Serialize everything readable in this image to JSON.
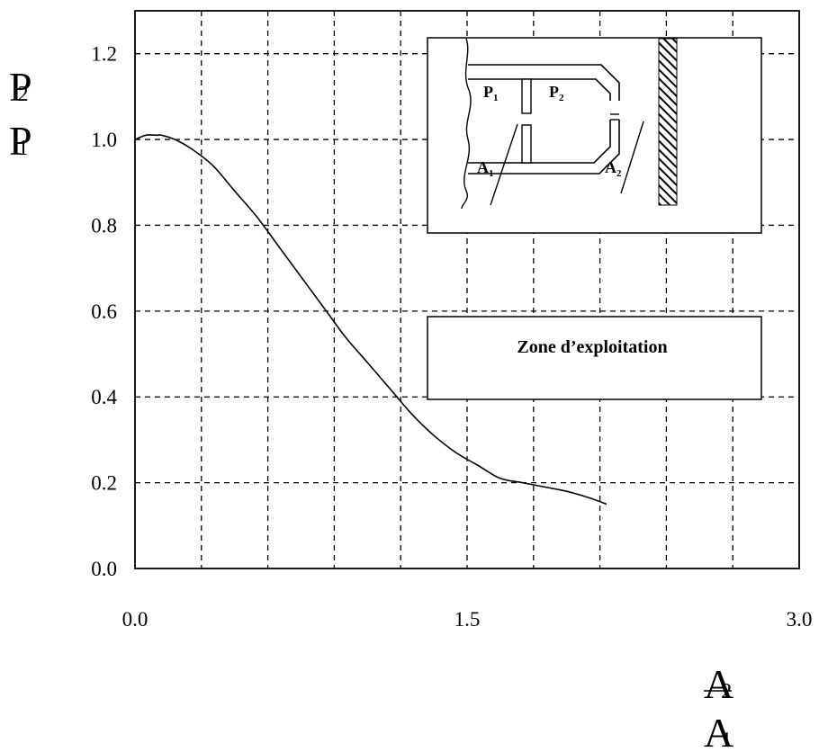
{
  "chart_data": {
    "type": "line",
    "title": "",
    "ylabel": {
      "numerator": "P",
      "numerator_sub": "2",
      "denominator": "P",
      "denominator_sub": "1"
    },
    "xlabel": {
      "numerator": "A",
      "numerator_sub": "2",
      "denominator": "A",
      "denominator_sub": "1"
    },
    "xlim": [
      0.0,
      3.0
    ],
    "ylim": [
      0.0,
      1.3
    ],
    "x_ticks": [
      0.0,
      1.5,
      3.0
    ],
    "x_tick_labels": [
      "0.0",
      "1.5",
      "3.0"
    ],
    "y_ticks": [
      0.0,
      0.2,
      0.4,
      0.6,
      0.8,
      1.0,
      1.2
    ],
    "y_tick_labels": [
      "0.0",
      "0.2",
      "0.4",
      "0.6",
      "0.8",
      "1.0",
      "1.2"
    ],
    "grid": true,
    "series": [
      {
        "x": [
          0.0,
          0.05,
          0.1,
          0.12,
          0.18,
          0.25,
          0.35,
          0.45,
          0.55,
          0.65,
          0.75,
          0.85,
          0.95,
          1.05,
          1.15,
          1.25,
          1.35,
          1.45,
          1.55,
          1.65,
          1.75,
          1.85,
          1.95,
          2.05,
          2.13
        ],
        "y": [
          1.0,
          1.01,
          1.01,
          1.01,
          1.0,
          0.98,
          0.94,
          0.88,
          0.82,
          0.75,
          0.68,
          0.61,
          0.54,
          0.48,
          0.42,
          0.36,
          0.31,
          0.27,
          0.24,
          0.21,
          0.2,
          0.19,
          0.18,
          0.165,
          0.15
        ]
      }
    ],
    "annotations": {
      "inset_labels": [
        {
          "text": "P",
          "sub": "1"
        },
        {
          "text": "P",
          "sub": "2"
        },
        {
          "text": "A",
          "sub": "1"
        },
        {
          "text": "A",
          "sub": "2"
        }
      ],
      "zone_label": "Zone d’exploitation"
    }
  }
}
